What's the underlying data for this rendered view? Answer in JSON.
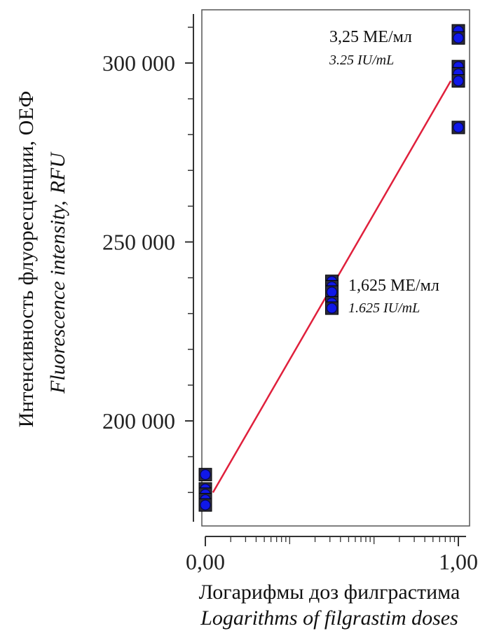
{
  "chart_data": {
    "type": "scatter",
    "title": "",
    "xlabel": "Логарифмы доз филграстима",
    "xlabel_en": "Logarithms of filgrastim doses",
    "ylabel": "Интенсивность флуоресценции, ОЕФ",
    "ylabel_en_main": "Fluorescence intensity,",
    "ylabel_en_unit": "RFU",
    "xlim": [
      0,
      1
    ],
    "ylim": [
      175000,
      315000
    ],
    "x_ticks": [
      {
        "value": 0,
        "label": "0,00"
      },
      {
        "value": 1,
        "label": "1,00"
      }
    ],
    "y_ticks": [
      {
        "value": 200000,
        "label": "200 000"
      },
      {
        "value": 250000,
        "label": "250 000"
      },
      {
        "value": 300000,
        "label": "300 000"
      }
    ],
    "grid": false,
    "series": [
      {
        "marker_color": "#1018e8",
        "points": [
          {
            "x": 0,
            "y": 185000
          },
          {
            "x": 0,
            "y": 181000
          },
          {
            "x": 0,
            "y": 179500
          },
          {
            "x": 0,
            "y": 178000
          },
          {
            "x": 0,
            "y": 176500
          },
          {
            "x": 0.5,
            "y": 239000
          },
          {
            "x": 0.5,
            "y": 237500
          },
          {
            "x": 0.5,
            "y": 236000
          },
          {
            "x": 0.5,
            "y": 233000
          },
          {
            "x": 0.5,
            "y": 231500
          },
          {
            "x": 1,
            "y": 309000
          },
          {
            "x": 1,
            "y": 307000
          },
          {
            "x": 1,
            "y": 299000
          },
          {
            "x": 1,
            "y": 297000
          },
          {
            "x": 1,
            "y": 295000
          },
          {
            "x": 1,
            "y": 282000
          }
        ]
      }
    ],
    "fit_line": {
      "color": "#e0203c",
      "x": [
        0.03,
        0.97
      ],
      "y": [
        180000,
        295000
      ]
    },
    "annotations": [
      {
        "main": "3,25 МЕ/мл",
        "sub": "3.25 IU/mL",
        "x": 1,
        "y": 309000
      },
      {
        "main": "1,625 МЕ/мл",
        "sub": "1.625 IU/mL",
        "x": 0.5,
        "y": 237500
      }
    ]
  }
}
